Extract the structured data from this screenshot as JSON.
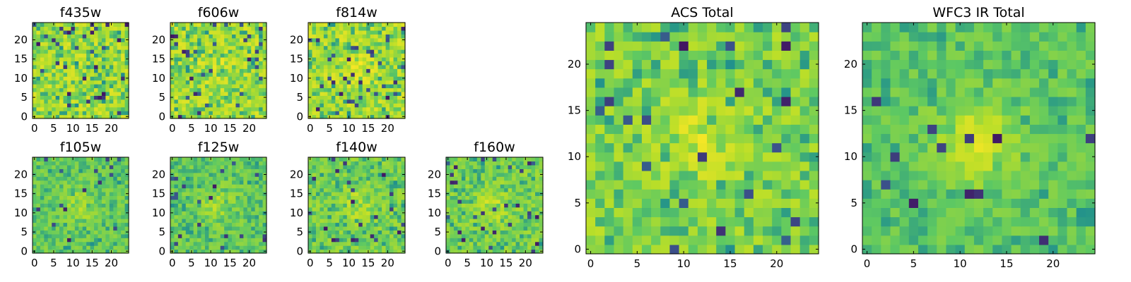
{
  "figure": {
    "description_type": "grid of image-cutout heatmaps"
  },
  "colors": {
    "colormap": [
      "#440154",
      "#3b528b",
      "#21918c",
      "#5ec962",
      "#b8de29",
      "#fde725"
    ],
    "frame": "#000000"
  },
  "chart_data": [
    {
      "type": "heatmap",
      "title": "f435w",
      "grid": [
        25,
        25
      ],
      "xticks": [
        0,
        5,
        10,
        15,
        20
      ],
      "yticks": [
        0,
        5,
        10,
        15,
        20
      ],
      "xlim": [
        -0.5,
        24.5
      ],
      "ylim": [
        -0.5,
        24.5
      ],
      "source_bright": 0.0,
      "noise": 1.0
    },
    {
      "type": "heatmap",
      "title": "f606w",
      "grid": [
        25,
        25
      ],
      "xticks": [
        0,
        5,
        10,
        15,
        20
      ],
      "yticks": [
        0,
        5,
        10,
        15,
        20
      ],
      "xlim": [
        -0.5,
        24.5
      ],
      "ylim": [
        -0.5,
        24.5
      ],
      "source_bright": 0.25,
      "noise": 1.0
    },
    {
      "type": "heatmap",
      "title": "f814w",
      "grid": [
        25,
        25
      ],
      "xticks": [
        0,
        5,
        10,
        15,
        20
      ],
      "yticks": [
        0,
        5,
        10,
        15,
        20
      ],
      "xlim": [
        -0.5,
        24.5
      ],
      "ylim": [
        -0.5,
        24.5
      ],
      "source_bright": 0.3,
      "noise": 1.0
    },
    {
      "type": "heatmap",
      "title": "f105w",
      "grid": [
        25,
        25
      ],
      "xticks": [
        0,
        5,
        10,
        15,
        20
      ],
      "yticks": [
        0,
        5,
        10,
        15,
        20
      ],
      "xlim": [
        -0.5,
        24.5
      ],
      "ylim": [
        -0.5,
        24.5
      ],
      "source_bright": 0.45,
      "noise": 0.6
    },
    {
      "type": "heatmap",
      "title": "f125w",
      "grid": [
        25,
        25
      ],
      "xticks": [
        0,
        5,
        10,
        15,
        20
      ],
      "yticks": [
        0,
        5,
        10,
        15,
        20
      ],
      "xlim": [
        -0.5,
        24.5
      ],
      "ylim": [
        -0.5,
        24.5
      ],
      "source_bright": 0.45,
      "noise": 0.6
    },
    {
      "type": "heatmap",
      "title": "f140w",
      "grid": [
        25,
        25
      ],
      "xticks": [
        0,
        5,
        10,
        15,
        20
      ],
      "yticks": [
        0,
        5,
        10,
        15,
        20
      ],
      "xlim": [
        -0.5,
        24.5
      ],
      "ylim": [
        -0.5,
        24.5
      ],
      "source_bright": 0.45,
      "noise": 0.7
    },
    {
      "type": "heatmap",
      "title": "f160w",
      "grid": [
        25,
        25
      ],
      "xticks": [
        0,
        5,
        10,
        15,
        20
      ],
      "yticks": [
        0,
        5,
        10,
        15,
        20
      ],
      "xlim": [
        -0.5,
        24.5
      ],
      "ylim": [
        -0.5,
        24.5
      ],
      "source_bright": 0.5,
      "noise": 0.7
    },
    {
      "type": "heatmap",
      "title": "ACS Total",
      "grid": [
        25,
        25
      ],
      "xticks": [
        0,
        5,
        10,
        15,
        20
      ],
      "yticks": [
        0,
        5,
        10,
        15,
        20
      ],
      "xlim": [
        -0.5,
        24.5
      ],
      "ylim": [
        -0.5,
        24.5
      ],
      "source_bright": 0.5,
      "noise": 0.8
    },
    {
      "type": "heatmap",
      "title": "WFC3 IR Total",
      "grid": [
        25,
        25
      ],
      "xticks": [
        0,
        5,
        10,
        15,
        20
      ],
      "yticks": [
        0,
        5,
        10,
        15,
        20
      ],
      "xlim": [
        -0.5,
        24.5
      ],
      "ylim": [
        -0.5,
        24.5
      ],
      "source_bright": 0.8,
      "noise": 0.55
    }
  ]
}
